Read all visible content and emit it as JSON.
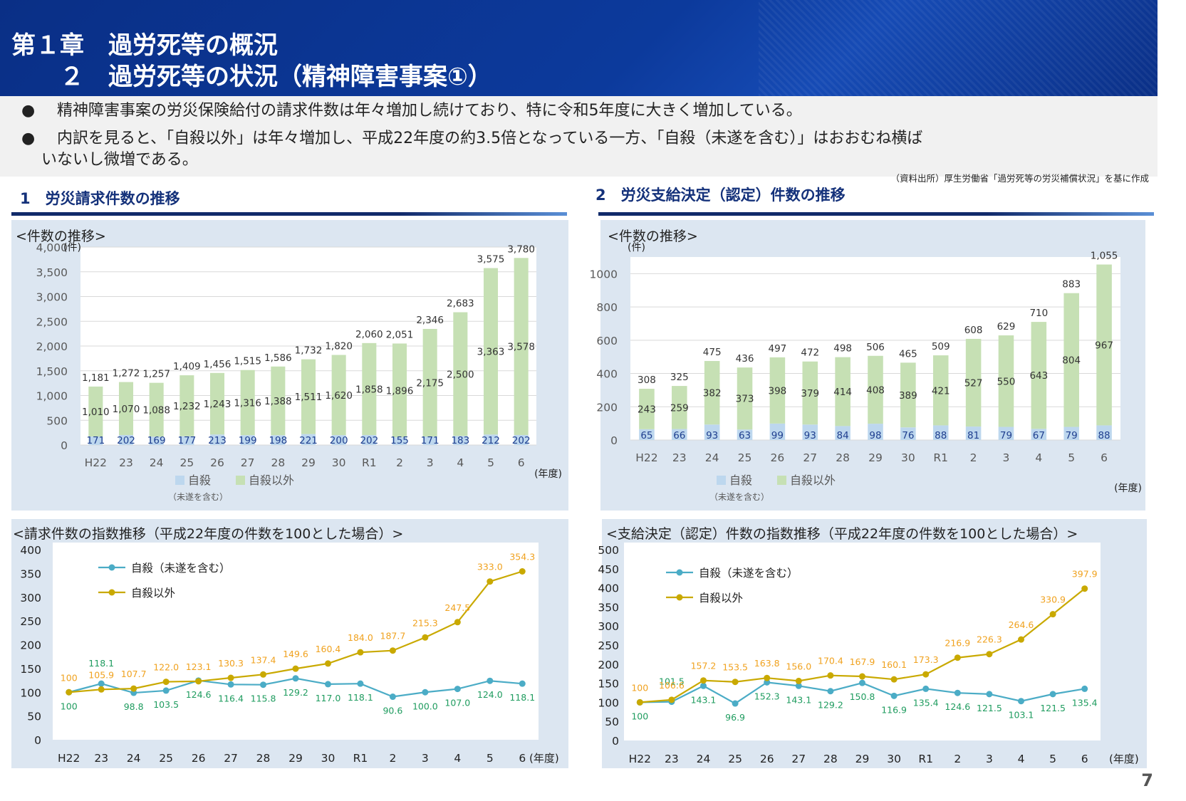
{
  "header": {
    "chapter": "第１章　過労死等の概況",
    "section": "　　２　過労死等の状況（精神障害事案①）"
  },
  "bullets": [
    "精神障害事案の労災保険給付の請求件数は年々増加し続けており、特に令和5年度に大きく増加している。",
    "内訳を見ると、「自殺以外」は年々増加し、平成22年度の約3.5倍となっている一方、「自殺（未遂を含む）」はおおむね横ば",
    "いないし微増である。"
  ],
  "bullet_symbol": "●",
  "source_note": "（資料出所）厚生労働省「過労死等の労災補償状況」を基に作成",
  "section1_title": "1　労災請求件数の推移",
  "section2_title": "2　労災支給決定（認定）件数の推移",
  "page_number": "7",
  "colors": {
    "suicide": "#bdd7ee",
    "non_suicide": "#c6e0b4",
    "line_suicide": "#4bacc6",
    "line_non_suicide": "#c9a900",
    "label_non_suicide_index": "#f0a21f",
    "label_suicide_index": "#1f9c5f",
    "header_bg": "#0c3a9c"
  },
  "chart_data": [
    {
      "type": "bar",
      "stacked": true,
      "title": "<件数の推移>",
      "unit_label": "(件)",
      "xlabel": "(年度)",
      "categories": [
        "H22",
        "23",
        "24",
        "25",
        "26",
        "27",
        "28",
        "29",
        "30",
        "R1",
        "2",
        "3",
        "4",
        "5",
        "6"
      ],
      "series": [
        {
          "name": "自殺",
          "name_note": "（未遂を含む）",
          "values": [
            171,
            202,
            169,
            177,
            213,
            199,
            198,
            221,
            200,
            202,
            155,
            171,
            183,
            212,
            202
          ]
        },
        {
          "name": "自殺以外",
          "values": [
            1010,
            1070,
            1088,
            1232,
            1243,
            1316,
            1388,
            1511,
            1620,
            1858,
            1896,
            2175,
            2500,
            3363,
            3578
          ]
        }
      ],
      "totals": [
        1181,
        1272,
        1257,
        1409,
        1456,
        1515,
        1586,
        1732,
        1820,
        2060,
        2051,
        2346,
        2683,
        3575,
        3780
      ],
      "yticks": [
        "0",
        "500",
        "1,000",
        "1,500",
        "2,000",
        "2,500",
        "3,000",
        "3,500",
        "4,000"
      ],
      "ylim": [
        0,
        4000
      ],
      "grid": true,
      "legend": "bottom"
    },
    {
      "type": "bar",
      "stacked": true,
      "title": "<件数の推移>",
      "unit_label": "(件)",
      "xlabel": "(年度)",
      "categories": [
        "H22",
        "23",
        "24",
        "25",
        "26",
        "27",
        "28",
        "29",
        "30",
        "R1",
        "2",
        "3",
        "4",
        "5",
        "6"
      ],
      "series": [
        {
          "name": "自殺",
          "name_note": "（未遂を含む）",
          "values": [
            65,
            66,
            93,
            63,
            99,
            93,
            84,
            98,
            76,
            88,
            81,
            79,
            67,
            79,
            88
          ]
        },
        {
          "name": "自殺以外",
          "values": [
            243,
            259,
            382,
            373,
            398,
            379,
            414,
            408,
            389,
            421,
            527,
            550,
            643,
            804,
            967
          ]
        }
      ],
      "totals": [
        308,
        325,
        475,
        436,
        497,
        472,
        498,
        506,
        465,
        509,
        608,
        629,
        710,
        883,
        1055
      ],
      "yticks": [
        "0",
        "200",
        "400",
        "600",
        "800",
        "1000"
      ],
      "ylim": [
        0,
        1100
      ],
      "grid": true,
      "legend": "bottom"
    },
    {
      "type": "line",
      "title": "<請求件数の指数推移（平成22年度の件数を100とした場合）>",
      "xlabel": "(年度)",
      "categories": [
        "H22",
        "23",
        "24",
        "25",
        "26",
        "27",
        "28",
        "29",
        "30",
        "R1",
        "2",
        "3",
        "4",
        "5",
        "6"
      ],
      "series": [
        {
          "name": "自殺（未遂を含む）",
          "values": [
            100,
            118.1,
            98.8,
            103.5,
            124.6,
            116.4,
            115.8,
            129.2,
            117.0,
            118.1,
            90.6,
            100.0,
            107.0,
            124.0,
            118.1
          ],
          "labels": [
            "100",
            "118.1",
            "98.8",
            "103.5",
            "124.6",
            "116.4",
            "115.8",
            "129.2",
            "117.0",
            "118.1",
            "90.6",
            "100.0",
            "107.0",
            "124.0",
            "118.1"
          ]
        },
        {
          "name": "自殺以外",
          "values": [
            100,
            105.9,
            107.7,
            122.0,
            123.1,
            130.3,
            137.4,
            149.6,
            160.4,
            184.0,
            187.7,
            215.3,
            247.5,
            333.0,
            354.3
          ],
          "labels": [
            "100",
            "105.9",
            "107.7",
            "122.0",
            "123.1",
            "130.3",
            "137.4",
            "149.6",
            "160.4",
            "184.0",
            "187.7",
            "215.3",
            "247.5",
            "333.0",
            "354.3"
          ]
        }
      ],
      "yticks": [
        "0",
        "50",
        "100",
        "150",
        "200",
        "250",
        "300",
        "350",
        "400"
      ],
      "ylim": [
        0,
        400
      ],
      "grid": true,
      "legend": "top-left"
    },
    {
      "type": "line",
      "title": "<支給決定（認定）件数の指数推移（平成22年度の件数を100とした場合）>",
      "xlabel": "(年度)",
      "categories": [
        "H22",
        "23",
        "24",
        "25",
        "26",
        "27",
        "28",
        "29",
        "30",
        "R1",
        "2",
        "3",
        "4",
        "5",
        "6"
      ],
      "series": [
        {
          "name": "自殺（未遂を含む）",
          "values": [
            100,
            101.5,
            143.1,
            96.9,
            152.3,
            143.1,
            129.2,
            150.8,
            116.9,
            135.4,
            124.6,
            121.5,
            103.1,
            121.5,
            135.4
          ],
          "labels": [
            "100",
            "101.5",
            "143.1",
            "96.9",
            "152.3",
            "143.1",
            "129.2",
            "150.8",
            "116.9",
            "135.4",
            "124.6",
            "121.5",
            "103.1",
            "121.5",
            "135.4"
          ]
        },
        {
          "name": "自殺以外",
          "values": [
            100,
            106.6,
            157.2,
            153.5,
            163.8,
            156.0,
            170.4,
            167.9,
            160.1,
            173.3,
            216.9,
            226.3,
            264.6,
            330.9,
            397.9
          ],
          "labels": [
            "100",
            "106.6",
            "157.2",
            "153.5",
            "163.8",
            "156.0",
            "170.4",
            "167.9",
            "160.1",
            "173.3",
            "216.9",
            "226.3",
            "264.6",
            "330.9",
            "397.9"
          ]
        }
      ],
      "yticks": [
        "0",
        "50",
        "100",
        "150",
        "200",
        "250",
        "300",
        "350",
        "400",
        "450",
        "500"
      ],
      "ylim": [
        0,
        500
      ],
      "grid": true,
      "legend": "top-left"
    }
  ]
}
